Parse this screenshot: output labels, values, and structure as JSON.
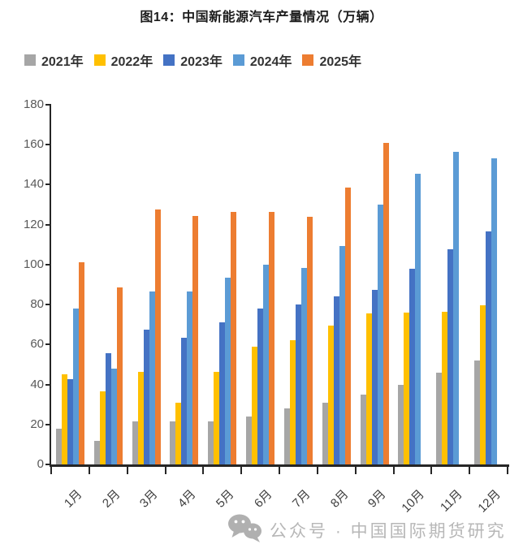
{
  "title": "图14：中国新能源汽车产量情况（万辆）",
  "watermark": {
    "icon": "wechat-icon",
    "text": "公众号 · 中国国际期货研究"
  },
  "colors": {
    "axis": "#262626",
    "y_tick_label": "#595959",
    "x_tick_label": "#3d3d3d",
    "watermark": "#ababab"
  },
  "chart_data": {
    "type": "bar",
    "title": "图14：中国新能源汽车产量情况（万辆）",
    "xlabel": "",
    "ylabel": "",
    "unit": "万辆",
    "categories": [
      "1月",
      "2月",
      "3月",
      "4月",
      "5月",
      "6月",
      "7月",
      "8月",
      "9月",
      "10月",
      "11月",
      "12月"
    ],
    "series": [
      {
        "name": "2021年",
        "color": "#a6a6a6",
        "values": [
          18,
          12,
          21.5,
          21.5,
          21.5,
          24,
          28,
          31,
          35,
          40,
          46,
          52
        ]
      },
      {
        "name": "2022年",
        "color": "#ffc000",
        "values": [
          45,
          36.5,
          46.5,
          31,
          46.5,
          59,
          62,
          69.5,
          75.5,
          76,
          76.5,
          79.5
        ]
      },
      {
        "name": "2023年",
        "color": "#4472c4",
        "values": [
          42.5,
          55.5,
          67.5,
          63.5,
          71,
          78,
          80,
          84,
          87.5,
          98,
          107.5,
          116.5
        ]
      },
      {
        "name": "2024年",
        "color": "#5b9bd5",
        "values": [
          78,
          48,
          86.5,
          86.5,
          93.5,
          100,
          98.5,
          109.5,
          130,
          145.5,
          156.5,
          153
        ]
      },
      {
        "name": "2025年",
        "color": "#ed7d31",
        "values": [
          101,
          88.5,
          127.5,
          124.5,
          126.5,
          126.5,
          124,
          138.5,
          161,
          null,
          null,
          null
        ]
      }
    ],
    "ylim": [
      0,
      180
    ],
    "ytick_step": 20,
    "legend_position": "top",
    "grid": false
  }
}
